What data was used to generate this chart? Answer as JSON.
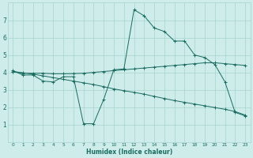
{
  "xlabel": "Humidex (Indice chaleur)",
  "bg_color": "#cdecea",
  "grid_color": "#a8d5cc",
  "line_color": "#1a6b60",
  "xlim": [
    -0.5,
    23.5
  ],
  "ylim": [
    0.0,
    8.0
  ],
  "yticks": [
    1,
    2,
    3,
    4,
    5,
    6,
    7
  ],
  "xticks": [
    0,
    1,
    2,
    3,
    4,
    5,
    6,
    7,
    8,
    9,
    10,
    11,
    12,
    13,
    14,
    15,
    16,
    17,
    18,
    19,
    20,
    21,
    22,
    23
  ],
  "line1_x": [
    0,
    1,
    2,
    3,
    4,
    5,
    6,
    7,
    8,
    9,
    10,
    11,
    12,
    13,
    14,
    15,
    16,
    17,
    18,
    19,
    20,
    21,
    22,
    23
  ],
  "line1_y": [
    4.1,
    3.85,
    3.85,
    3.5,
    3.45,
    3.75,
    3.75,
    1.05,
    1.05,
    2.45,
    4.15,
    4.2,
    7.6,
    7.25,
    6.55,
    6.35,
    5.8,
    5.8,
    5.0,
    4.85,
    4.45,
    3.45,
    1.7,
    1.5
  ],
  "line2_x": [
    0,
    1,
    2,
    3,
    4,
    5,
    6,
    7,
    8,
    9,
    10,
    11,
    12,
    13,
    14,
    15,
    16,
    17,
    18,
    19,
    20,
    21,
    22,
    23
  ],
  "line2_y": [
    4.05,
    3.95,
    3.95,
    3.95,
    3.92,
    3.92,
    3.93,
    3.95,
    4.0,
    4.05,
    4.1,
    4.15,
    4.2,
    4.25,
    4.3,
    4.35,
    4.4,
    4.45,
    4.5,
    4.55,
    4.55,
    4.5,
    4.45,
    4.4
  ],
  "line3_x": [
    0,
    1,
    2,
    3,
    4,
    5,
    6,
    7,
    8,
    9,
    10,
    11,
    12,
    13,
    14,
    15,
    16,
    17,
    18,
    19,
    20,
    21,
    22,
    23
  ],
  "line3_y": [
    4.05,
    3.98,
    3.9,
    3.8,
    3.7,
    3.6,
    3.5,
    3.4,
    3.3,
    3.18,
    3.05,
    2.95,
    2.85,
    2.75,
    2.62,
    2.5,
    2.38,
    2.28,
    2.18,
    2.08,
    1.98,
    1.88,
    1.75,
    1.55
  ]
}
